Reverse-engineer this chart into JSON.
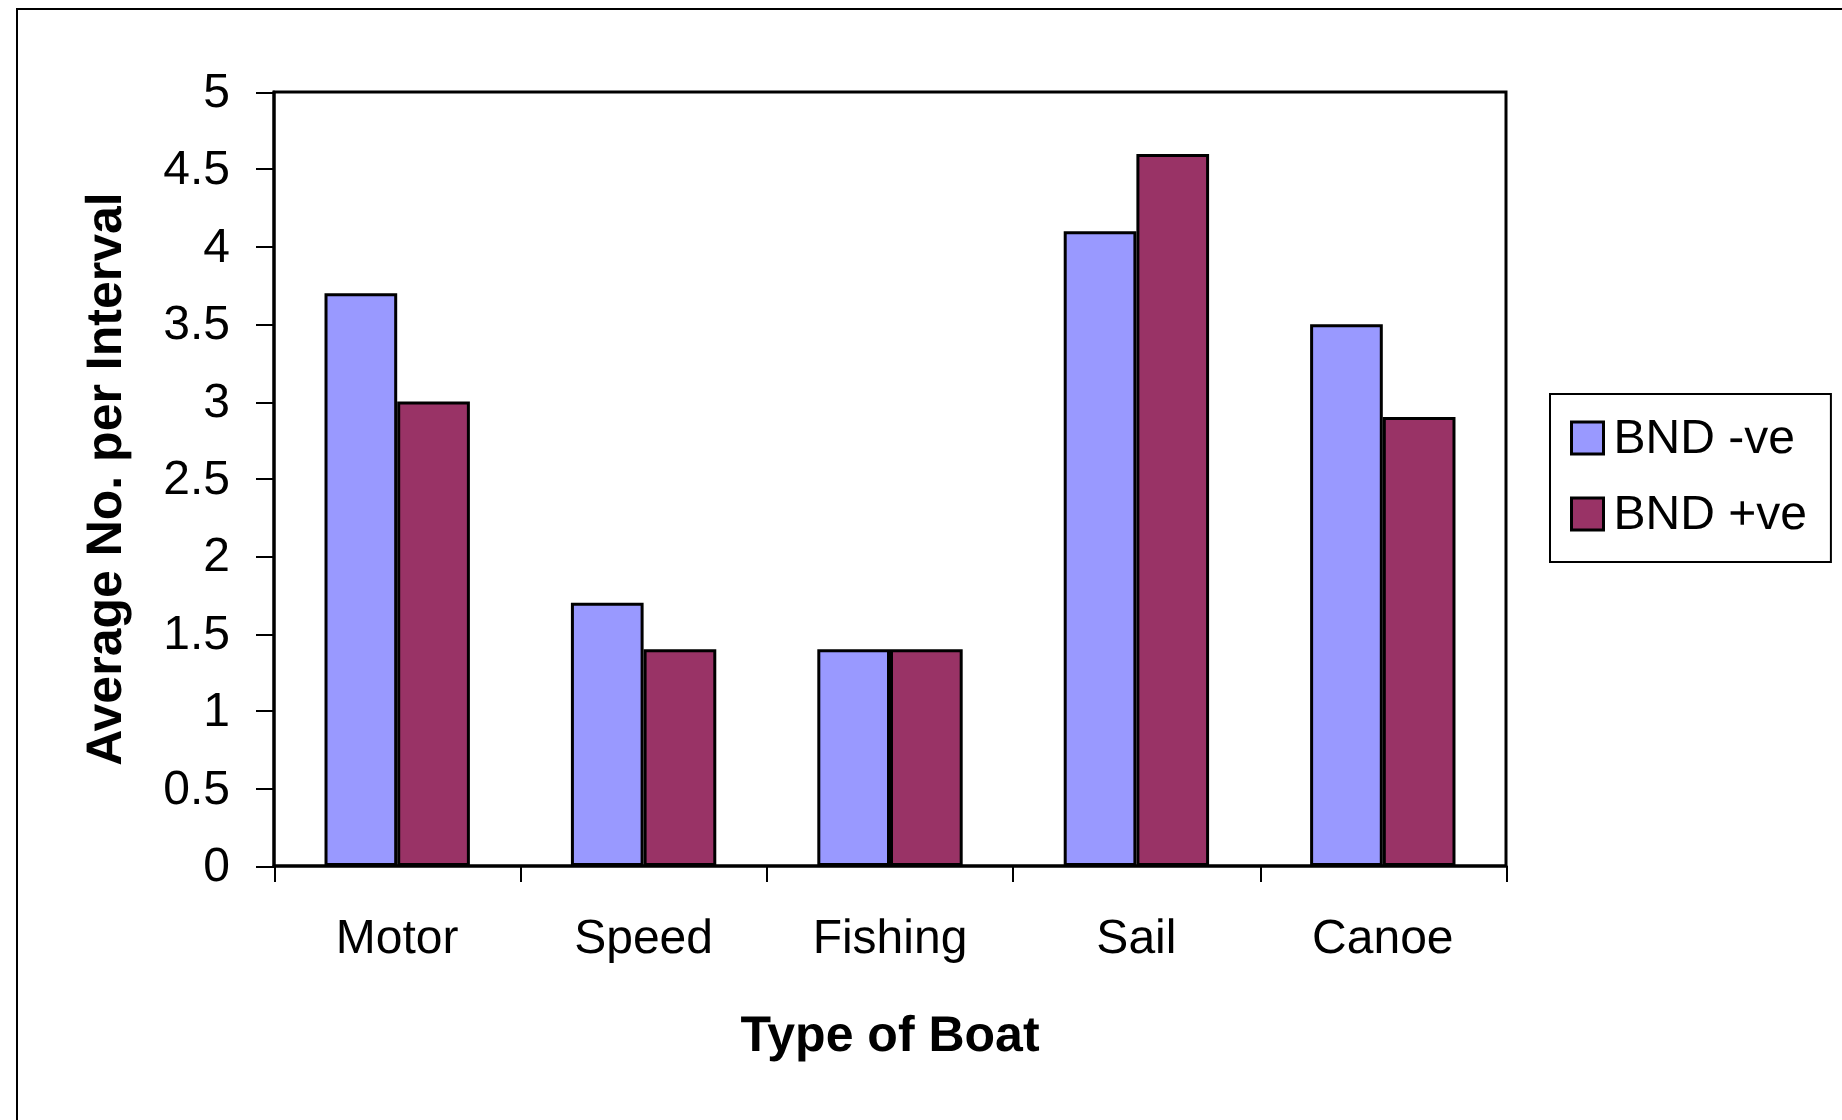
{
  "chart_data": {
    "type": "bar",
    "xlabel": "Type of Boat",
    "ylabel": "Average No. per Interval",
    "categories": [
      "Motor",
      "Speed",
      "Fishing",
      "Sail",
      "Canoe"
    ],
    "series": [
      {
        "name": "BND -ve",
        "color": "#9999ff",
        "values": [
          3.7,
          1.7,
          1.4,
          4.1,
          3.5
        ]
      },
      {
        "name": "BND +ve",
        "color": "#993366",
        "values": [
          3.0,
          1.4,
          1.4,
          4.6,
          2.9
        ]
      }
    ],
    "ylim": [
      0,
      5
    ],
    "yticks": [
      0,
      0.5,
      1,
      1.5,
      2,
      2.5,
      3,
      3.5,
      4,
      4.5,
      5
    ],
    "grid": false,
    "legend": "right"
  }
}
